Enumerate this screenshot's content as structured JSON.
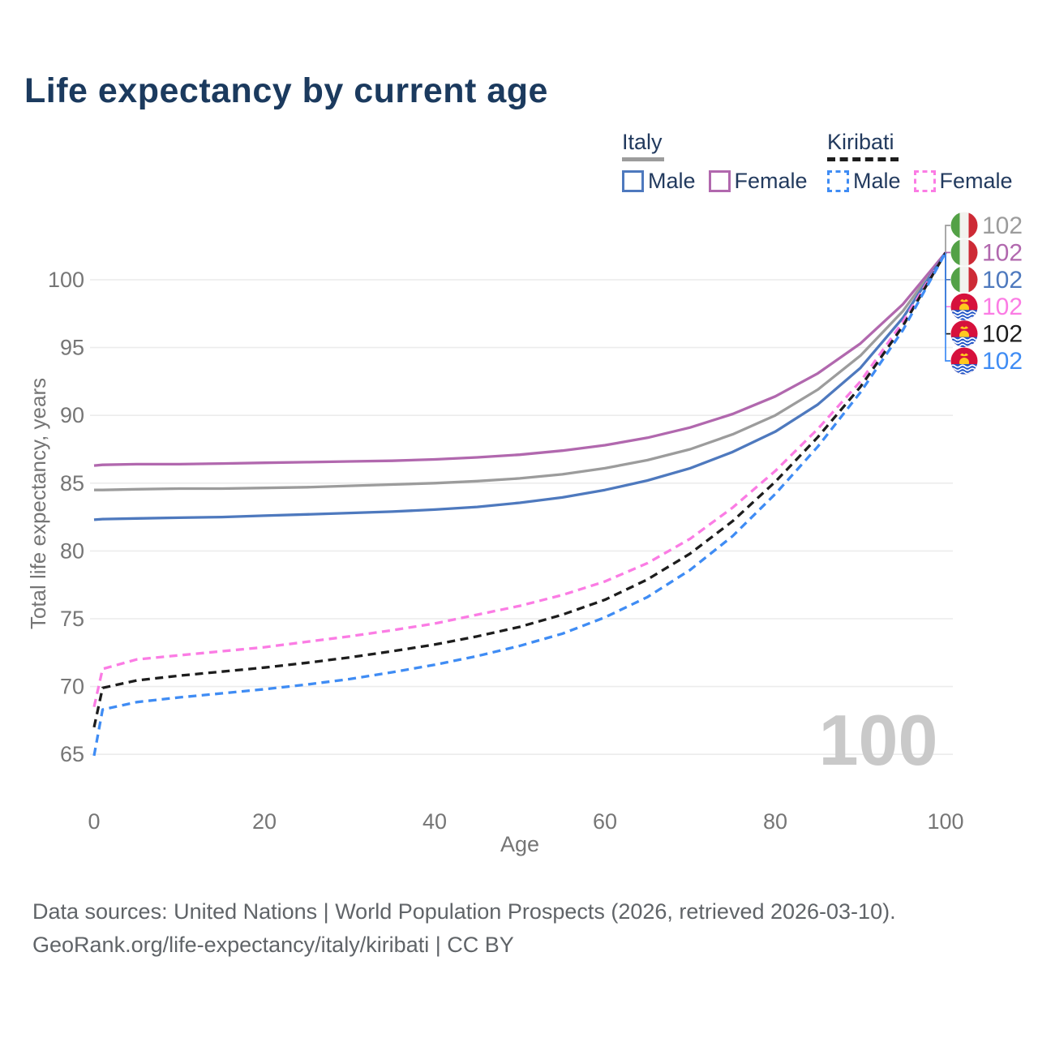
{
  "title": "Life expectancy by current age",
  "watermark": "100",
  "legend": {
    "italy_title": "Italy",
    "italy_male": "Male",
    "italy_female": "Female",
    "kiribati_title": "Kiribati",
    "kiribati_male": "Male",
    "kiribati_female": "Female"
  },
  "footer": {
    "line1": "Data sources: United Nations | World Population Prospects (2026, retrieved 2026-03-10).",
    "line2": "GeoRank.org/life-expectancy/italy/kiribati | CC BY"
  },
  "chart_data": {
    "type": "line",
    "title": "Life expectancy by current age",
    "xlabel": "Age",
    "ylabel": "Total life expectancy, years",
    "xlim": [
      0,
      100
    ],
    "ylim": [
      63.5,
      103.5
    ],
    "xticks": [
      0,
      20,
      40,
      60,
      80,
      100
    ],
    "yticks": [
      65,
      70,
      75,
      80,
      85,
      90,
      95,
      100
    ],
    "grid": "horizontal",
    "legend_position": "top-right",
    "x": [
      0,
      1,
      5,
      10,
      15,
      20,
      25,
      30,
      35,
      40,
      45,
      50,
      55,
      60,
      65,
      70,
      75,
      80,
      85,
      90,
      95,
      100
    ],
    "series": [
      {
        "name": "Italy - Both sexes",
        "country": "Italy",
        "sex": "Both",
        "color": "#9c9c9c",
        "style": "solid",
        "flag": "italy",
        "end_label": "102",
        "values": [
          84.5,
          84.5,
          84.55,
          84.6,
          84.6,
          84.65,
          84.7,
          84.8,
          84.9,
          85.0,
          85.15,
          85.35,
          85.65,
          86.1,
          86.7,
          87.5,
          88.6,
          90.0,
          91.9,
          94.4,
          97.7,
          102
        ]
      },
      {
        "name": "Italy - Female",
        "country": "Italy",
        "sex": "Female",
        "color": "#b168ae",
        "style": "solid",
        "flag": "italy",
        "end_label": "102",
        "values": [
          86.3,
          86.35,
          86.4,
          86.4,
          86.45,
          86.5,
          86.55,
          86.6,
          86.65,
          86.75,
          86.9,
          87.1,
          87.4,
          87.8,
          88.35,
          89.1,
          90.1,
          91.4,
          93.1,
          95.3,
          98.2,
          102
        ]
      },
      {
        "name": "Italy - Male",
        "country": "Italy",
        "sex": "Male",
        "color": "#4e79be",
        "style": "solid",
        "flag": "italy",
        "end_label": "102",
        "values": [
          82.3,
          82.35,
          82.4,
          82.45,
          82.5,
          82.6,
          82.7,
          82.8,
          82.9,
          83.05,
          83.25,
          83.55,
          83.95,
          84.5,
          85.2,
          86.1,
          87.3,
          88.8,
          90.8,
          93.5,
          97.2,
          102
        ]
      },
      {
        "name": "Kiribati - Female",
        "country": "Kiribati",
        "sex": "Female",
        "color": "#fb7ce4",
        "style": "dashed",
        "flag": "kiribati",
        "end_label": "102",
        "values": [
          68.5,
          71.3,
          72.0,
          72.3,
          72.6,
          72.9,
          73.3,
          73.7,
          74.15,
          74.65,
          75.3,
          75.95,
          76.75,
          77.75,
          79.1,
          80.9,
          83.2,
          85.9,
          89.0,
          92.5,
          96.9,
          102
        ]
      },
      {
        "name": "Kiribati - Both sexes",
        "country": "Kiribati",
        "sex": "Both",
        "color": "#1d1d1d",
        "style": "dashed",
        "flag": "kiribati",
        "end_label": "102",
        "values": [
          67.0,
          69.9,
          70.45,
          70.8,
          71.1,
          71.4,
          71.75,
          72.15,
          72.6,
          73.1,
          73.7,
          74.4,
          75.3,
          76.4,
          77.9,
          79.8,
          82.2,
          85.1,
          88.4,
          92.1,
          96.6,
          102
        ]
      },
      {
        "name": "Kiribati - Male",
        "country": "Kiribati",
        "sex": "Male",
        "color": "#3f8cf4",
        "style": "dashed",
        "flag": "kiribati",
        "end_label": "102",
        "values": [
          64.9,
          68.3,
          68.85,
          69.2,
          69.5,
          69.8,
          70.15,
          70.55,
          71.05,
          71.6,
          72.25,
          73.0,
          73.9,
          75.1,
          76.6,
          78.6,
          81.1,
          84.2,
          87.7,
          91.7,
          96.3,
          102
        ]
      }
    ]
  }
}
